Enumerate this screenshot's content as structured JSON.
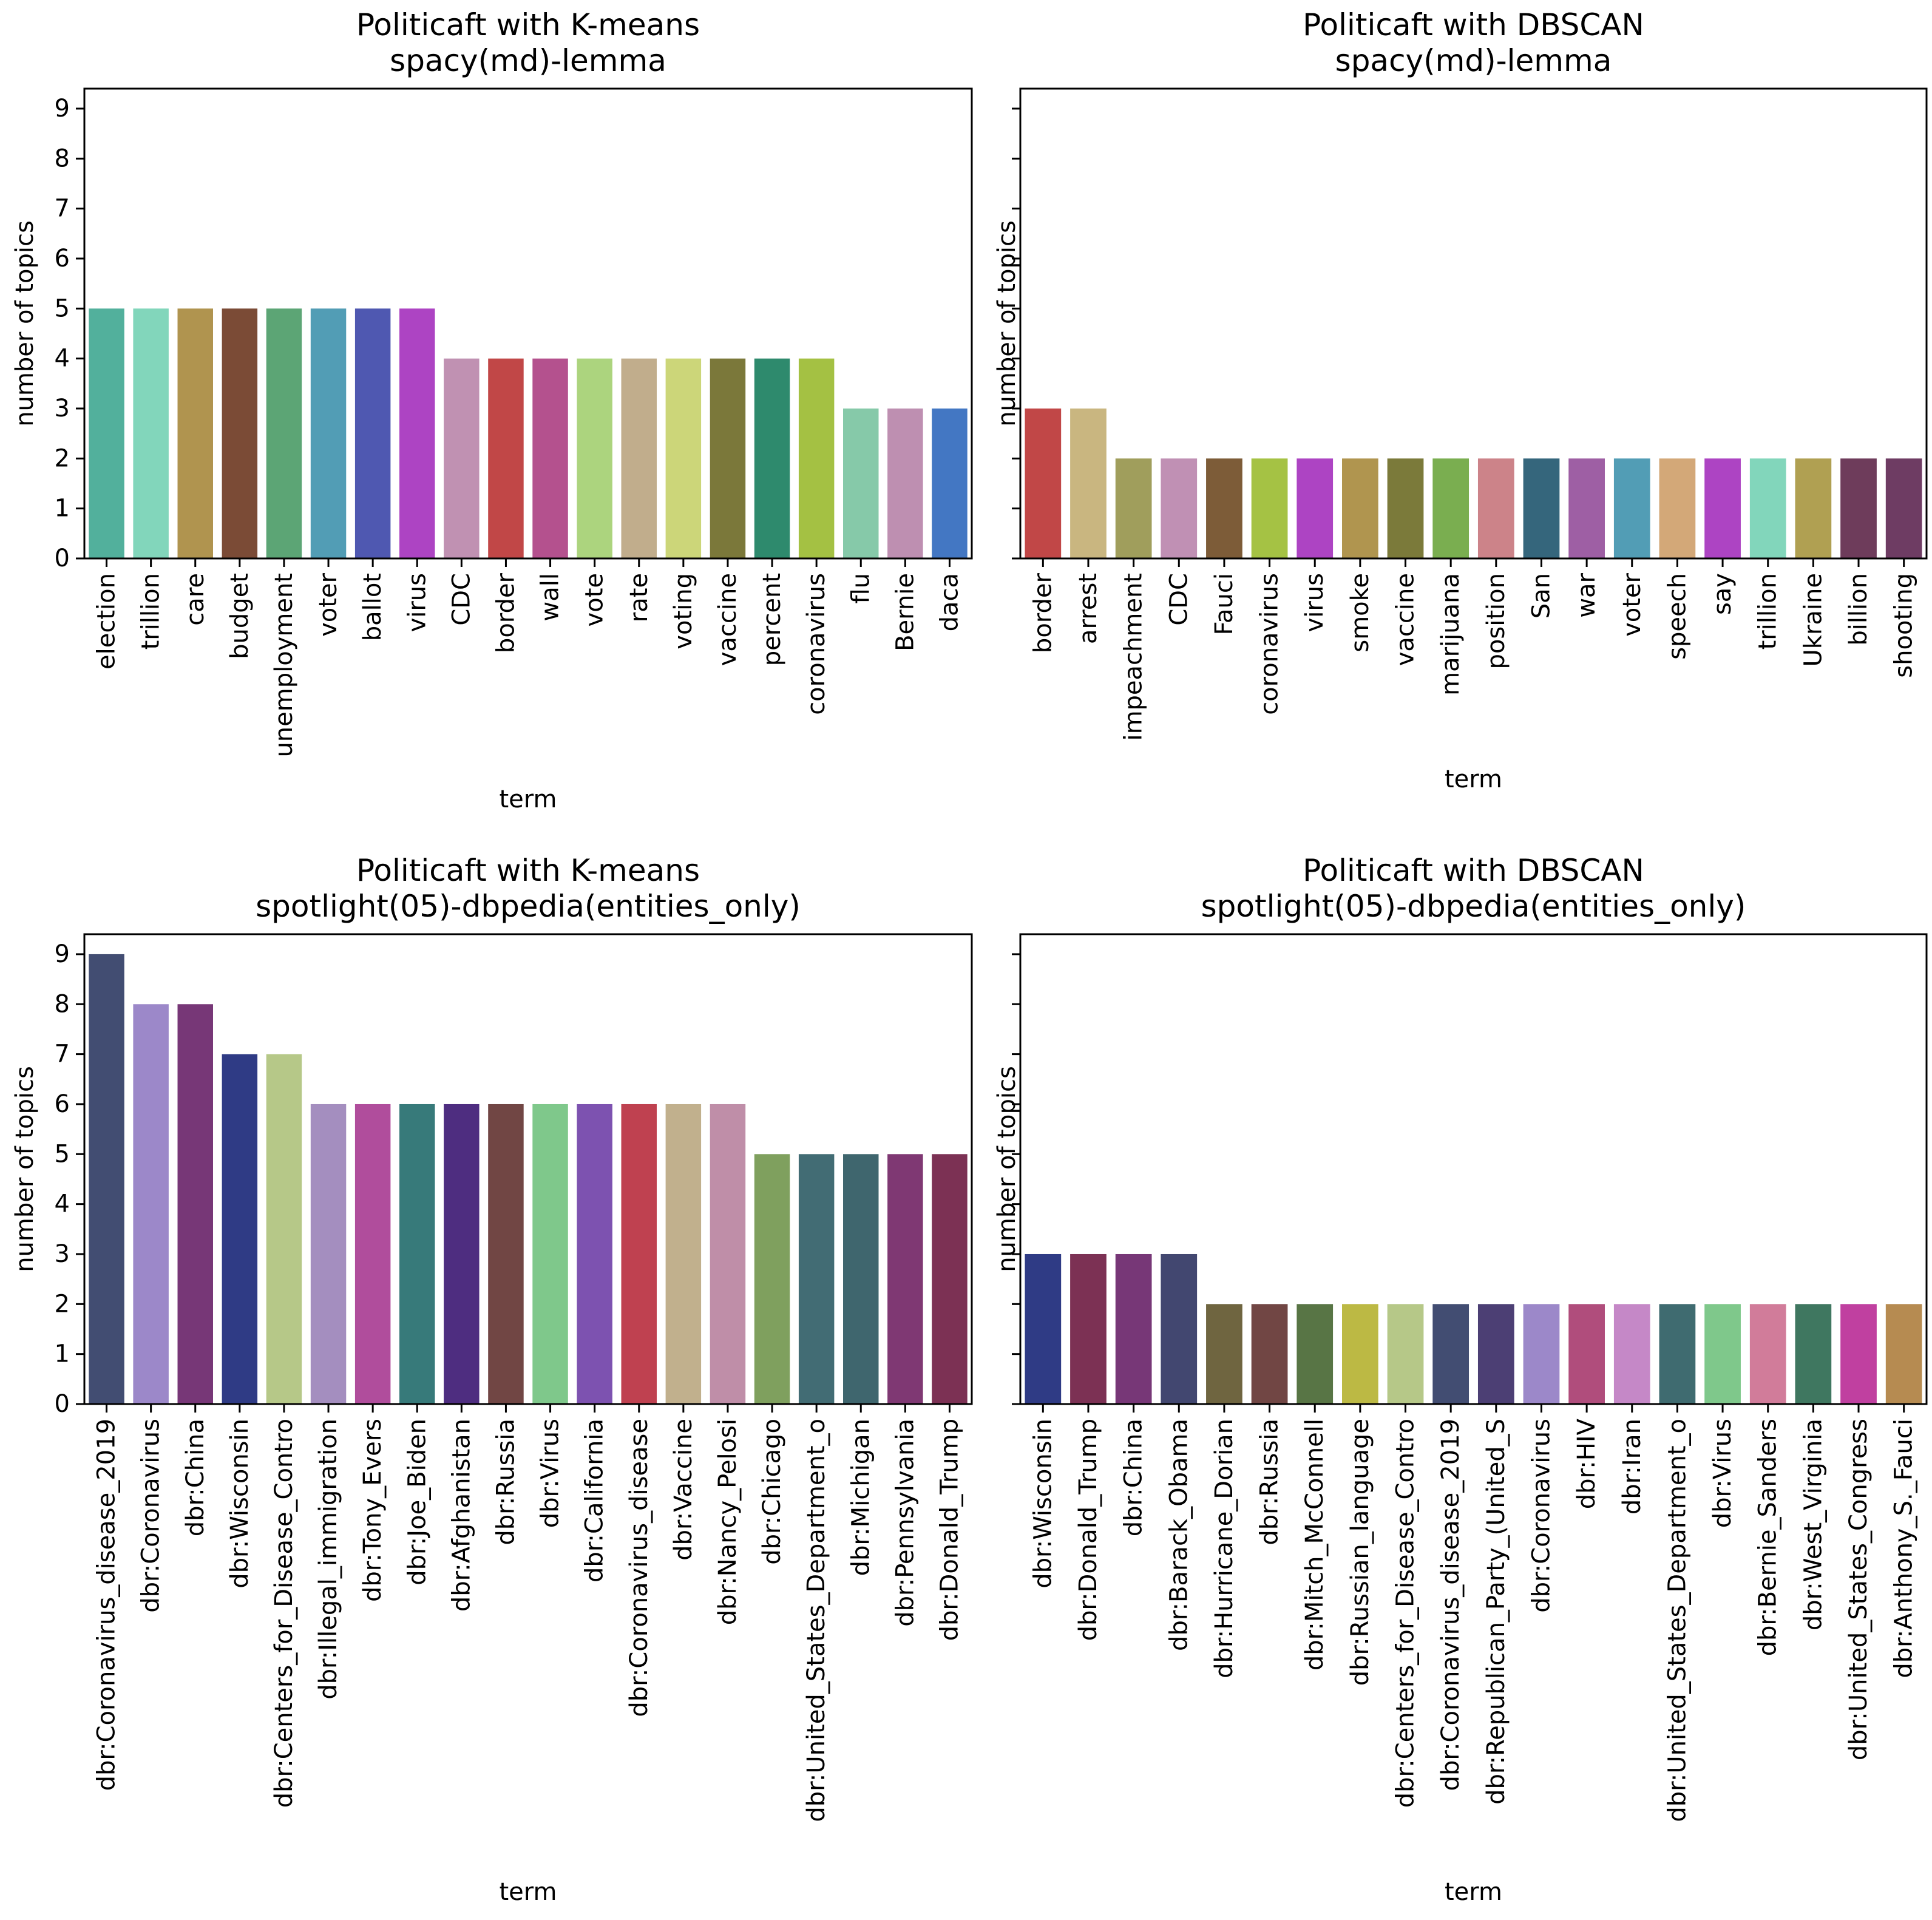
{
  "chart_data": [
    {
      "type": "bar",
      "title": "Politicaft with K-means",
      "subtitle": "spacy(md)-lemma",
      "xlabel": "term",
      "ylabel": "number of topics",
      "ylim": [
        0,
        9.4
      ],
      "yticks": [
        0,
        1,
        2,
        3,
        4,
        5,
        6,
        7,
        8,
        9
      ],
      "show_ytick_labels": true,
      "categories": [
        "election",
        "trillion",
        "care",
        "budget",
        "unemployment",
        "voter",
        "ballot",
        "virus",
        "CDC",
        "border",
        "wall",
        "vote",
        "rate",
        "voting",
        "vaccine",
        "percent",
        "coronavirus",
        "flu",
        "Bernie",
        "daca"
      ],
      "values": [
        5,
        5,
        5,
        5,
        5,
        5,
        5,
        5,
        4,
        4,
        4,
        4,
        4,
        4,
        4,
        4,
        4,
        3,
        3,
        3
      ],
      "colors": [
        "#52b09c",
        "#82d6bb",
        "#b0944f",
        "#7b4b36",
        "#5ca575",
        "#529db5",
        "#4f58b1",
        "#ad44c3",
        "#c091b2",
        "#c14747",
        "#b4518e",
        "#acd47e",
        "#c1ad8c",
        "#ccd679",
        "#7b783a",
        "#2e8a6d",
        "#a4c143",
        "#86c9a9",
        "#be8fb1",
        "#4377c3"
      ]
    },
    {
      "type": "bar",
      "title": "Politicaft with DBSCAN",
      "subtitle": "spacy(md)-lemma",
      "xlabel": "term",
      "ylabel": "number of topics",
      "ylim": [
        0,
        9.4
      ],
      "yticks": [
        0,
        1,
        2,
        3,
        4,
        5,
        6,
        7,
        8,
        9
      ],
      "show_ytick_labels": false,
      "categories": [
        "border",
        "arrest",
        "impeachment",
        "CDC",
        "Fauci",
        "coronavirus",
        "virus",
        "smoke",
        "vaccine",
        "marijuana",
        "position",
        "San",
        "war",
        "voter",
        "speech",
        "say",
        "trillion",
        "Ukraine",
        "billion",
        "shooting"
      ],
      "values": [
        3,
        3,
        2,
        2,
        2,
        2,
        2,
        2,
        2,
        2,
        2,
        2,
        2,
        2,
        2,
        2,
        2,
        2,
        2,
        2
      ],
      "colors": [
        "#c14747",
        "#c9b680",
        "#a09e5c",
        "#c090b4",
        "#7d5c38",
        "#a5c244",
        "#ad44c3",
        "#b0954f",
        "#7b7a3a",
        "#7aae50",
        "#cc8389",
        "#35667c",
        "#9e5fa4",
        "#529db5",
        "#d3a878",
        "#ad44c3",
        "#82d6bb",
        "#b0a052",
        "#6e3c5b",
        "#6e3c63"
      ]
    },
    {
      "type": "bar",
      "title": "Politicaft with K-means",
      "subtitle": "spotlight(05)-dbpedia(entities_only)",
      "xlabel": "term",
      "ylabel": "number of topics",
      "ylim": [
        0,
        9.4
      ],
      "yticks": [
        0,
        1,
        2,
        3,
        4,
        5,
        6,
        7,
        8,
        9
      ],
      "show_ytick_labels": true,
      "categories": [
        "dbr:Coronavirus_disease_2019",
        "dbr:Coronavirus",
        "dbr:China",
        "dbr:Wisconsin",
        "dbr:Centers_for_Disease_Contro",
        "dbr:Illegal_immigration",
        "dbr:Tony_Evers",
        "dbr:Joe_Biden",
        "dbr:Afghanistan",
        "dbr:Russia",
        "dbr:Virus",
        "dbr:California",
        "dbr:Coronavirus_disease",
        "dbr:Vaccine",
        "dbr:Nancy_Pelosi",
        "dbr:Chicago",
        "dbr:United_States_Department_o",
        "dbr:Michigan",
        "dbr:Pennsylvania",
        "dbr:Donald_Trump"
      ],
      "values": [
        9,
        8,
        8,
        7,
        7,
        6,
        6,
        6,
        6,
        6,
        6,
        6,
        6,
        6,
        6,
        5,
        5,
        5,
        5,
        5
      ],
      "colors": [
        "#424d72",
        "#9c88c9",
        "#773777",
        "#2f3b85",
        "#b6c888",
        "#a48ebf",
        "#b04d9c",
        "#377a7a",
        "#4e2d80",
        "#714644",
        "#7fc88b",
        "#7d52b0",
        "#bf4150",
        "#c1b08d",
        "#bf8ea8",
        "#7fa05e",
        "#426c74",
        "#3f666e",
        "#7f3873",
        "#7c3154"
      ]
    },
    {
      "type": "bar",
      "title": "Politicaft with DBSCAN",
      "subtitle": "spotlight(05)-dbpedia(entities_only)",
      "xlabel": "term",
      "ylabel": "number of topics",
      "ylim": [
        0,
        9.4
      ],
      "yticks": [
        0,
        1,
        2,
        3,
        4,
        5,
        6,
        7,
        8,
        9
      ],
      "show_ytick_labels": false,
      "categories": [
        "dbr:Wisconsin",
        "dbr:Donald_Trump",
        "dbr:China",
        "dbr:Barack_Obama",
        "dbr:Hurricane_Dorian",
        "dbr:Russia",
        "dbr:Mitch_McConnell",
        "dbr:Russian_language",
        "dbr:Centers_for_Disease_Contro",
        "dbr:Coronavirus_disease_2019",
        "dbr:Republican_Party_(United_S",
        "dbr:Coronavirus",
        "dbr:HIV",
        "dbr:Iran",
        "dbr:United_States_Department_o",
        "dbr:Virus",
        "dbr:Bernie_Sanders",
        "dbr:West_Virginia",
        "dbr:United_States_Congress",
        "dbr:Anthony_S._Fauci"
      ],
      "values": [
        3,
        3,
        3,
        3,
        2,
        2,
        2,
        2,
        2,
        2,
        2,
        2,
        2,
        2,
        2,
        2,
        2,
        2,
        2,
        2
      ],
      "colors": [
        "#2f3b85",
        "#7c3154",
        "#773777",
        "#424770",
        "#6f6540",
        "#714644",
        "#587545",
        "#bcb944",
        "#b6c888",
        "#424d72",
        "#4c3f74",
        "#9c88c9",
        "#b04d7c",
        "#c588c7",
        "#3f6b70",
        "#7fc88b",
        "#d17c9a",
        "#3f7760",
        "#c040a0",
        "#b68b51"
      ]
    }
  ]
}
